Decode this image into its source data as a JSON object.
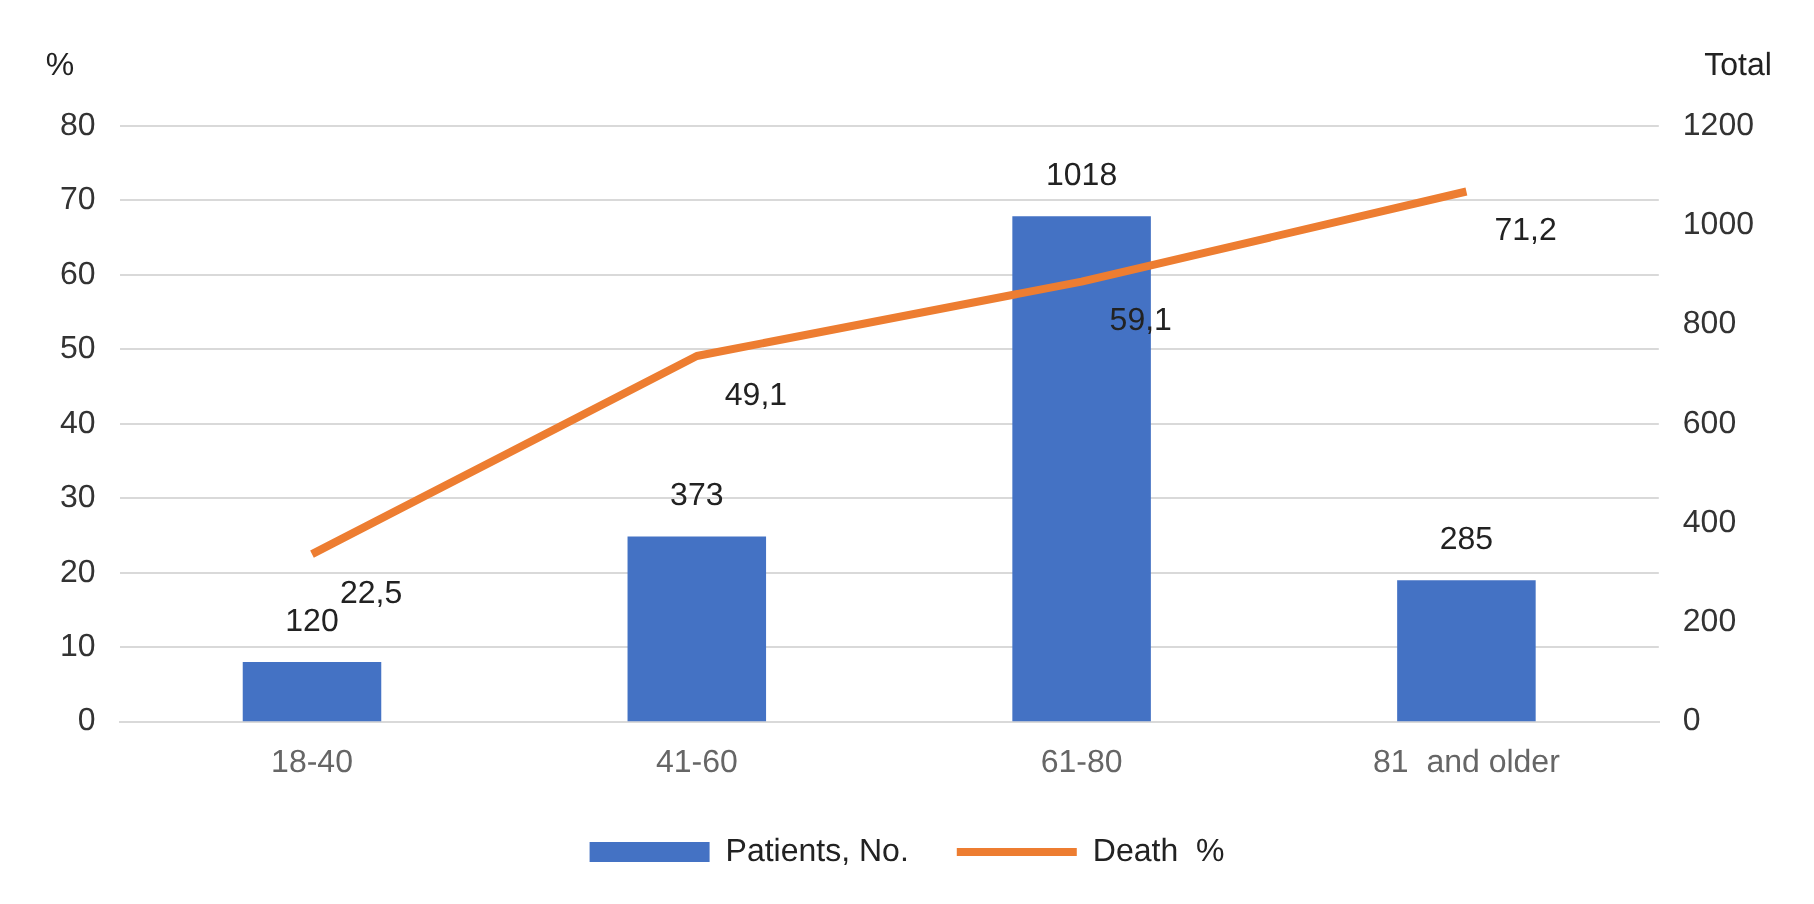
{
  "chart_data": {
    "type": "bar",
    "ylabel": "%",
    "y2label": "Total",
    "categories": [
      "18-40",
      "41-60",
      "61-80",
      "81  and older"
    ],
    "series": [
      {
        "name": "Patients, No.",
        "axis": "y2",
        "color": "#4472c4",
        "values": [
          120,
          373,
          1018,
          285
        ],
        "value_labels": [
          "120",
          "373",
          "1018",
          "285"
        ]
      },
      {
        "name": "Death  %",
        "type": "line",
        "axis": "y",
        "color": "#ed7d31",
        "values": [
          22.5,
          49.1,
          59.1,
          71.2
        ],
        "value_labels": [
          "22,5",
          "49,1",
          "59,1",
          "71,2"
        ],
        "marker": "none",
        "line_style": "solid"
      }
    ],
    "ylim": [
      0,
      80
    ],
    "yticks": [
      0,
      10,
      20,
      30,
      40,
      50,
      60,
      70,
      80
    ],
    "y2lim": [
      0,
      1200
    ],
    "y2ticks": [
      0,
      200,
      400,
      600,
      800,
      1000,
      1200
    ],
    "grid": "y",
    "legend": "bottom"
  }
}
